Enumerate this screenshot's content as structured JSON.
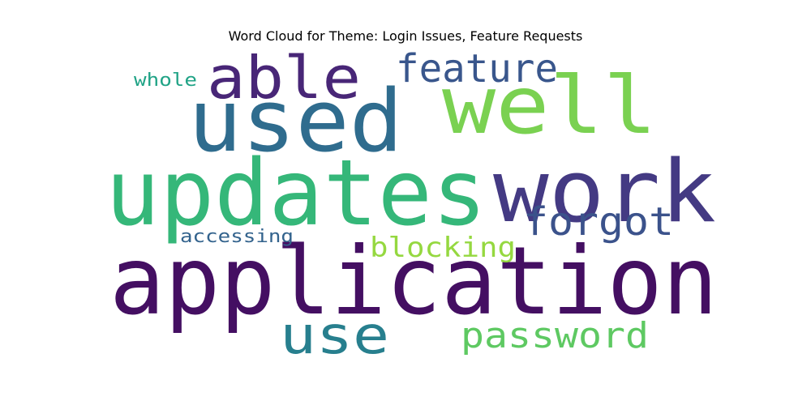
{
  "chart_data": {
    "type": "wordcloud",
    "title": "Word Cloud for Theme: Login Issues, Feature Requests",
    "words": [
      {
        "text": "application",
        "color": "#440f62"
      },
      {
        "text": "updates",
        "color": "#35b779"
      },
      {
        "text": "used",
        "color": "#2f6c8e"
      },
      {
        "text": "work",
        "color": "#443a83"
      },
      {
        "text": "well",
        "color": "#7ad151"
      },
      {
        "text": "able",
        "color": "#482677"
      },
      {
        "text": "feature",
        "color": "#39568c"
      },
      {
        "text": "forgot",
        "color": "#3b528b"
      },
      {
        "text": "use",
        "color": "#277f8e"
      },
      {
        "text": "password",
        "color": "#5ec962"
      },
      {
        "text": "blocking",
        "color": "#95d840"
      },
      {
        "text": "accessing",
        "color": "#33638d"
      },
      {
        "text": "whole",
        "color": "#20a386"
      }
    ]
  }
}
